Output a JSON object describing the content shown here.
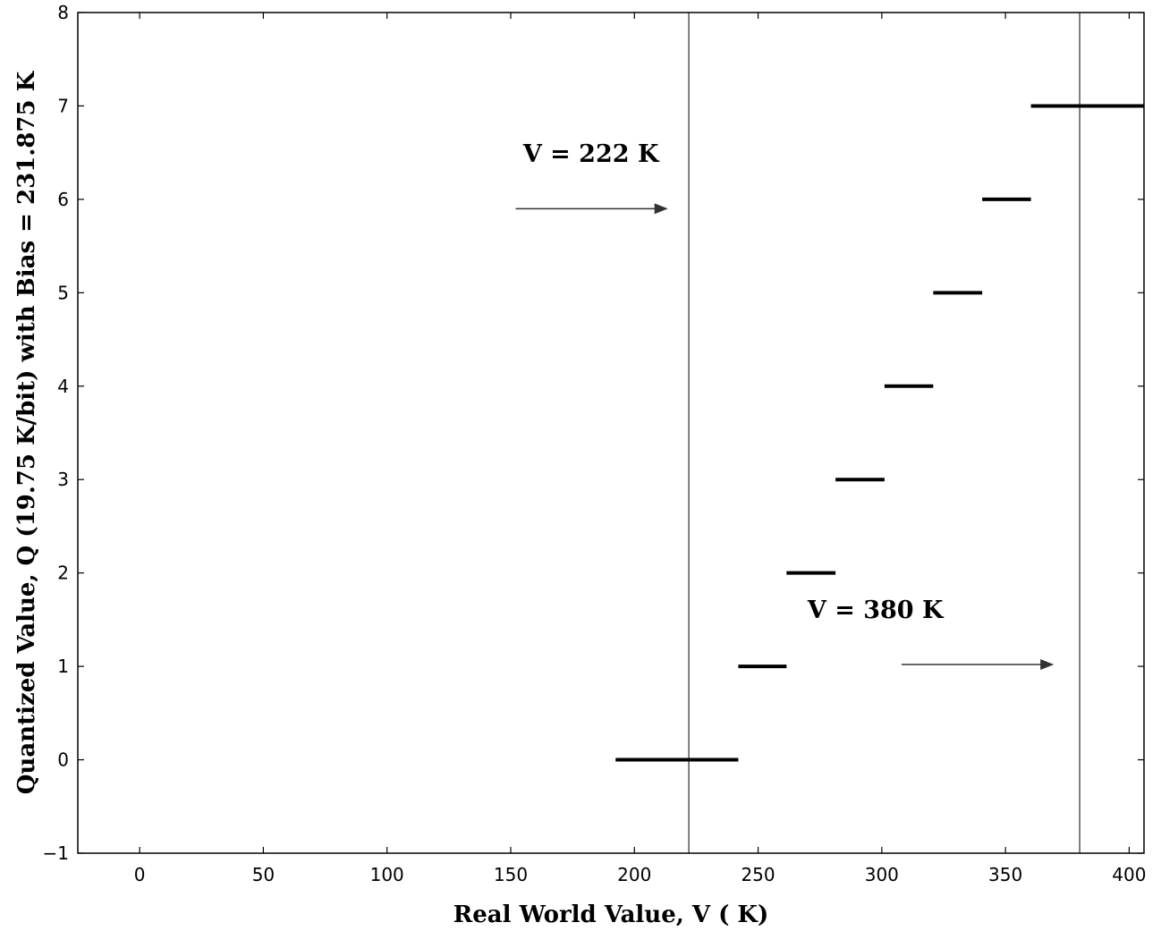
{
  "chart_data": {
    "type": "line",
    "title": "",
    "xlabel": "Real World Value, V ( K)",
    "ylabel": "Quantized Value, Q (19.75 K/bit) with Bias = 231.875 K",
    "xlim": [
      -25,
      406
    ],
    "ylim": [
      -1,
      8
    ],
    "xticks": [
      {
        "value": 0,
        "label": "0"
      },
      {
        "value": 50,
        "label": "50"
      },
      {
        "value": 100,
        "label": "100"
      },
      {
        "value": 150,
        "label": "150"
      },
      {
        "value": 200,
        "label": "200"
      },
      {
        "value": 250,
        "label": "250"
      },
      {
        "value": 300,
        "label": "300"
      },
      {
        "value": 350,
        "label": "350"
      },
      {
        "value": 400,
        "label": "400"
      }
    ],
    "yticks": [
      {
        "value": -1,
        "label": "−1"
      },
      {
        "value": 0,
        "label": "0"
      },
      {
        "value": 1,
        "label": "1"
      },
      {
        "value": 2,
        "label": "2"
      },
      {
        "value": 3,
        "label": "3"
      },
      {
        "value": 4,
        "label": "4"
      },
      {
        "value": 5,
        "label": "5"
      },
      {
        "value": 6,
        "label": "6"
      },
      {
        "value": 7,
        "label": "7"
      },
      {
        "value": 8,
        "label": "8"
      }
    ],
    "grid": false,
    "series": [
      {
        "segments": [
          {
            "x_start": 192.4,
            "x_end": 242.0,
            "q": 0
          },
          {
            "x_start": 242.0,
            "x_end": 261.5,
            "q": 1
          },
          {
            "x_start": 261.5,
            "x_end": 281.3,
            "q": 2
          },
          {
            "x_start": 281.3,
            "x_end": 301.1,
            "q": 3
          },
          {
            "x_start": 301.1,
            "x_end": 320.8,
            "q": 4
          },
          {
            "x_start": 320.8,
            "x_end": 340.6,
            "q": 5
          },
          {
            "x_start": 340.6,
            "x_end": 360.3,
            "q": 6
          },
          {
            "x_start": 360.3,
            "x_end": 406.0,
            "q": 7
          }
        ]
      }
    ],
    "vertical_lines": [
      {
        "x": 222
      },
      {
        "x": 380
      }
    ],
    "annotations": [
      {
        "text": "V = 222  K",
        "text_x": 155,
        "text_y": 6.4,
        "arrow_x_start": 152,
        "arrow_x_end": 213,
        "arrow_y": 5.9
      },
      {
        "text": "V = 380  K",
        "text_x": 270,
        "text_y": 1.52,
        "arrow_x_start": 308,
        "arrow_x_end": 369,
        "arrow_y": 1.02
      }
    ],
    "colors": {
      "segment": "#000000",
      "vertical_line": "#555555",
      "arrow": "#333333",
      "axis": "#000000"
    }
  }
}
